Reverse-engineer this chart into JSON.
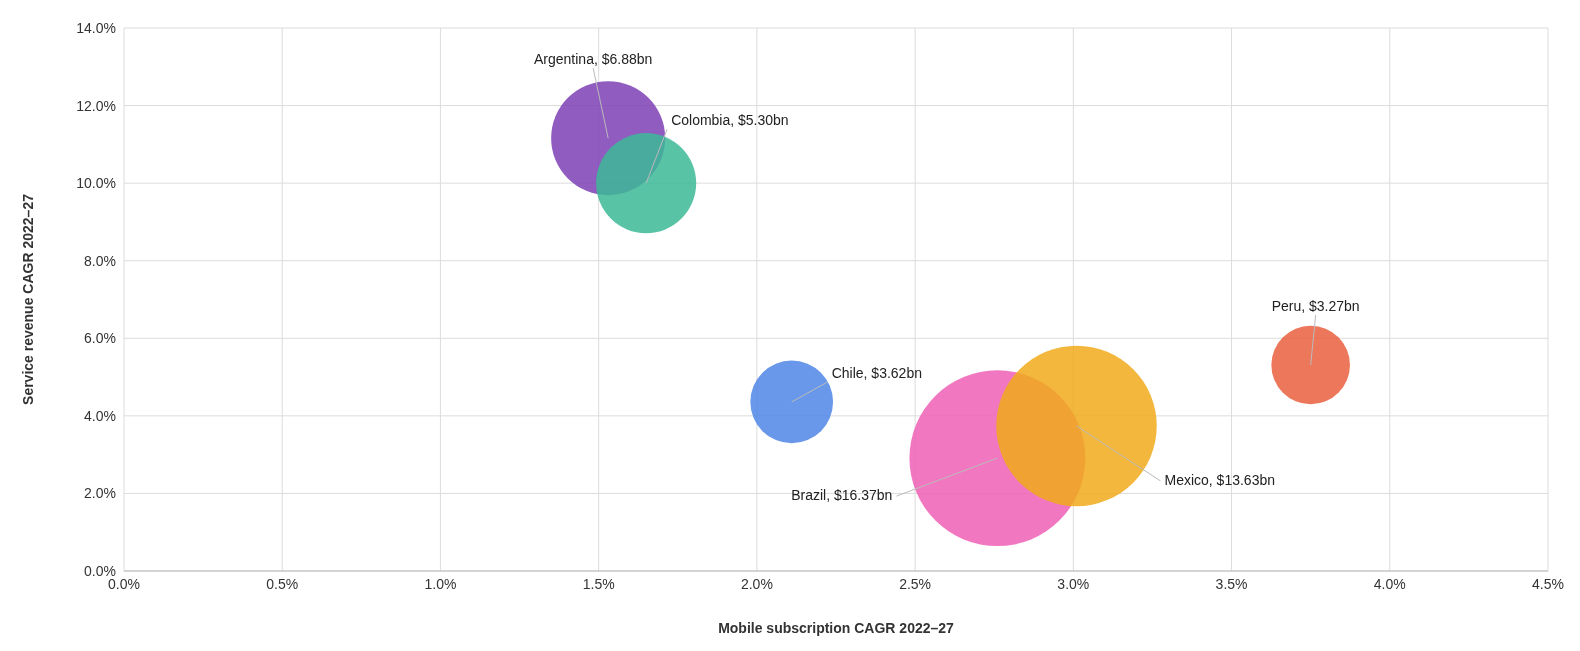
{
  "chart_data": {
    "type": "bubble",
    "xlabel": "Mobile subscription CAGR 2022–27",
    "ylabel": "Service revenue CAGR 2022–27",
    "x": [
      1.53,
      1.65,
      2.11,
      2.76,
      3.01,
      3.75
    ],
    "values": [
      11.16,
      10.0,
      4.36,
      2.91,
      3.74,
      5.31
    ],
    "sizes": [
      6.88,
      5.3,
      3.62,
      16.37,
      13.63,
      3.27
    ],
    "value_labels": [
      "Argentina, $6.88bn",
      "Colombia, $5.30bn",
      "Chile, $3.62bn",
      "Brazil, $16.37bn",
      "Mexico, $13.63bn",
      "Peru, $3.27bn"
    ],
    "colors": [
      "#7e3fb5",
      "#3cb897",
      "#4f85e6",
      "#ee5fb5",
      "#f0aa1a",
      "#ea5f3d"
    ],
    "xlim": [
      0,
      4.5
    ],
    "xticks": [
      {
        "value": 0,
        "label": "0.0%"
      },
      {
        "value": 0.5,
        "label": "0.5%"
      },
      {
        "value": 1,
        "label": "1.0%"
      },
      {
        "value": 1.5,
        "label": "1.5%"
      },
      {
        "value": 2,
        "label": "2.0%"
      },
      {
        "value": 2.5,
        "label": "2.5%"
      },
      {
        "value": 3,
        "label": "3.0%"
      },
      {
        "value": 3.5,
        "label": "3.5%"
      },
      {
        "value": 4,
        "label": "4.0%"
      },
      {
        "value": 4.5,
        "label": "4.5%"
      }
    ],
    "ylim": [
      0,
      14
    ],
    "yticks": [
      {
        "value": 0,
        "label": "0.0%"
      },
      {
        "value": 2,
        "label": "2.0%"
      },
      {
        "value": 4,
        "label": "4.0%"
      },
      {
        "value": 6,
        "label": "6.0%"
      },
      {
        "value": 8,
        "label": "8.0%"
      },
      {
        "value": 10,
        "label": "10.0%"
      },
      {
        "value": 12,
        "label": "12.0%"
      },
      {
        "value": 14,
        "label": "14.0%"
      }
    ],
    "grid": true,
    "legend": false
  }
}
